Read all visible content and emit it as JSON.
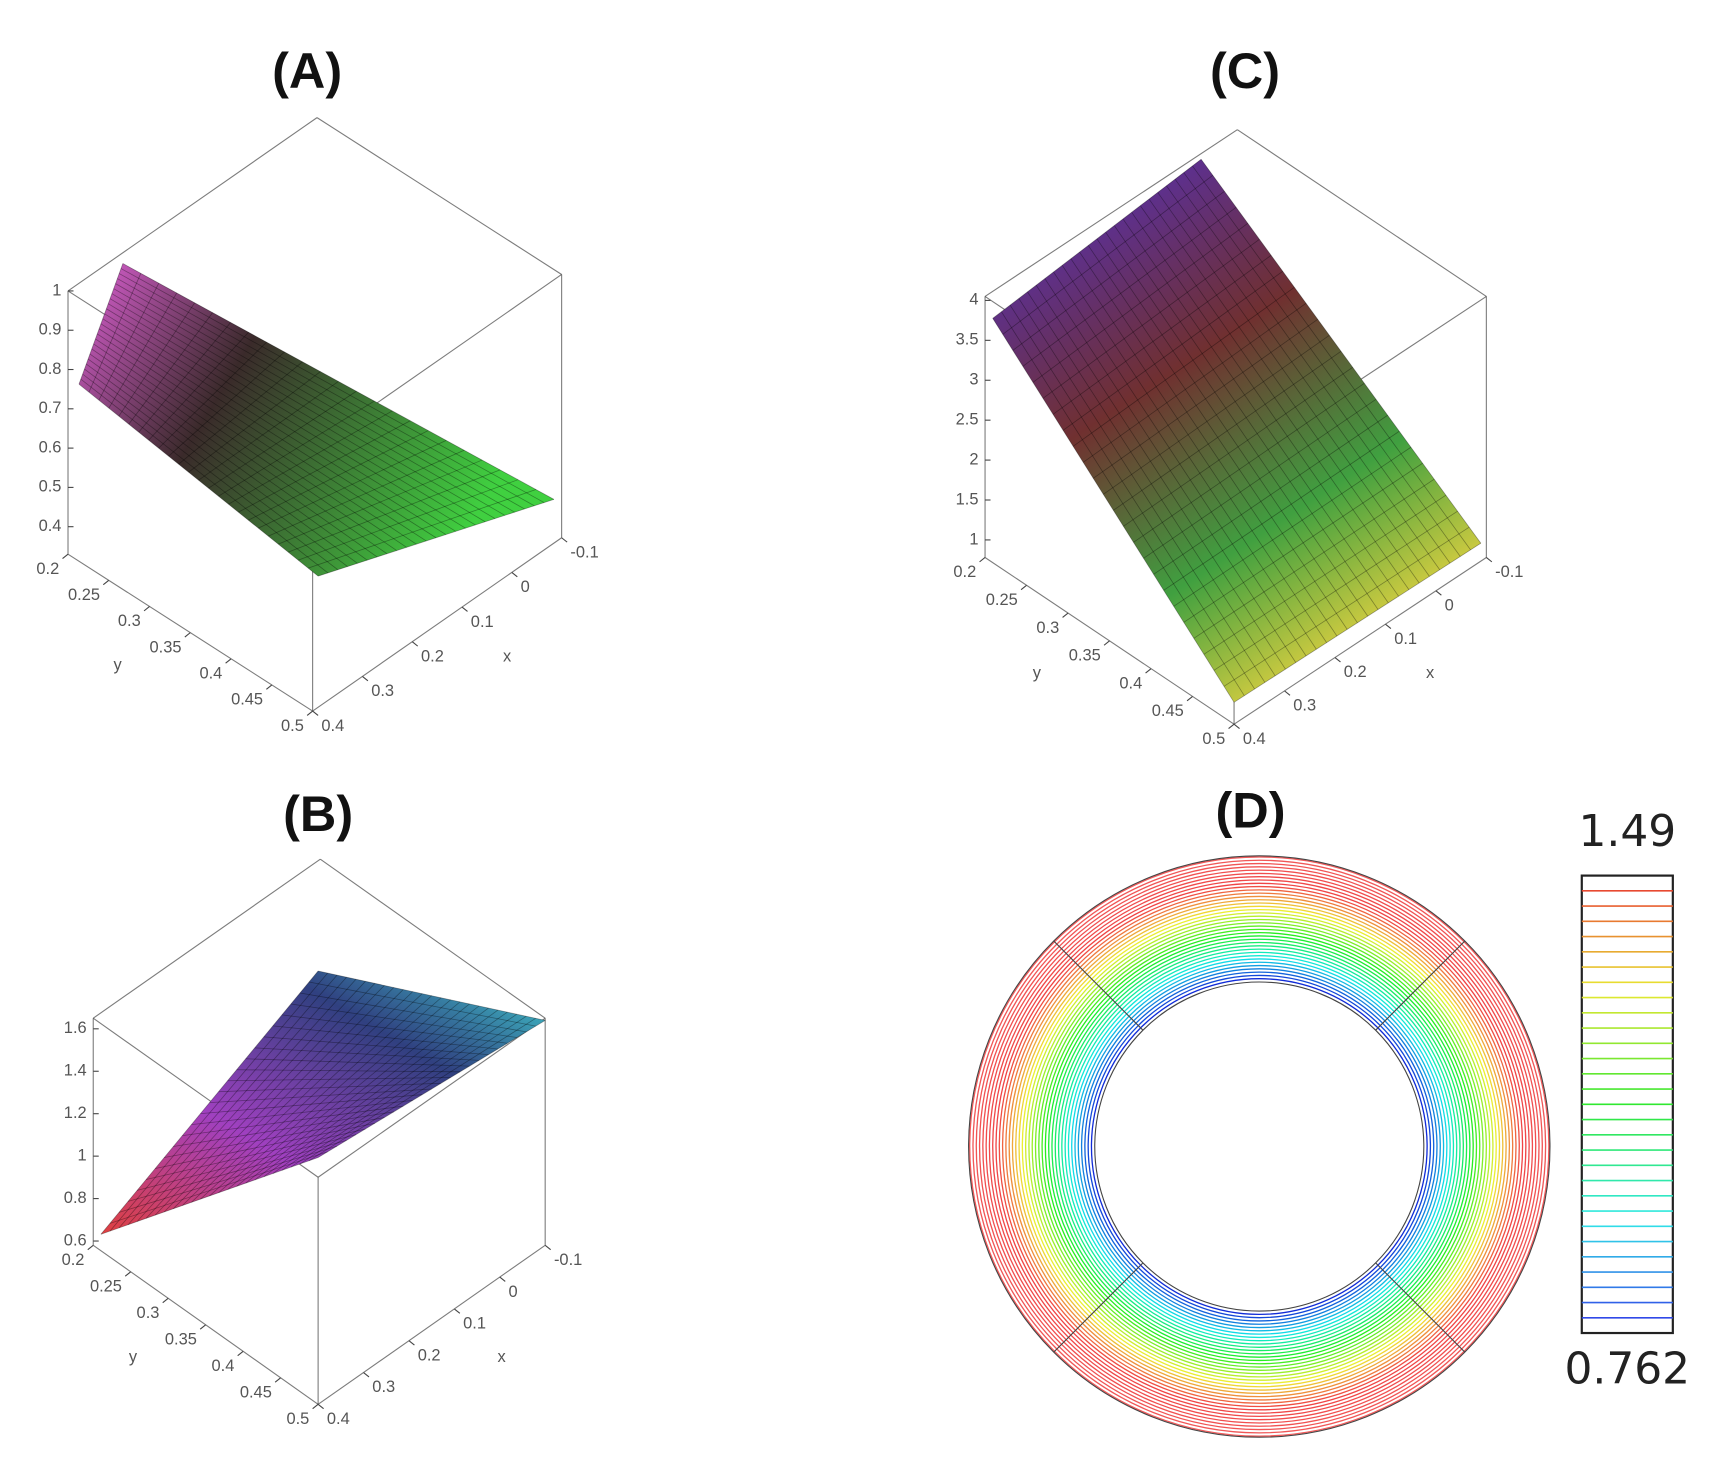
{
  "chart_data": [
    {
      "type": "surface",
      "title": "(A)",
      "xlabel": "x",
      "ylabel": "y",
      "xlim": [
        -0.1,
        0.4
      ],
      "xticks": [
        -0.1,
        0,
        0.1,
        0.2,
        0.3,
        0.4
      ],
      "ylim": [
        0.2,
        0.5
      ],
      "yticks": [
        0.2,
        0.25,
        0.3,
        0.35,
        0.4,
        0.45,
        0.5
      ],
      "zlim": [
        0.33,
        1
      ],
      "zticks": [
        0.4,
        0.5,
        0.6,
        0.7,
        0.8,
        0.9,
        1
      ]
    },
    {
      "type": "surface",
      "title": "(B)",
      "xlabel": "x",
      "ylabel": "y",
      "xlim": [
        -0.1,
        0.4
      ],
      "xticks": [
        -0.1,
        0,
        0.1,
        0.2,
        0.3,
        0.4
      ],
      "ylim": [
        0.2,
        0.5
      ],
      "yticks": [
        0.2,
        0.25,
        0.3,
        0.35,
        0.4,
        0.45,
        0.5
      ],
      "zlim": [
        0.58,
        1.65
      ],
      "zticks": [
        0.6,
        0.8,
        1,
        1.2,
        1.4,
        1.6
      ]
    },
    {
      "type": "surface",
      "title": "(C)",
      "xlabel": "x",
      "ylabel": "y",
      "xlim": [
        -0.1,
        0.4
      ],
      "xticks": [
        -0.1,
        0,
        0.1,
        0.2,
        0.3,
        0.4
      ],
      "ylim": [
        0.2,
        0.5
      ],
      "yticks": [
        0.2,
        0.25,
        0.3,
        0.35,
        0.4,
        0.45,
        0.5
      ],
      "zlim": [
        0.78,
        4.05
      ],
      "zticks": [
        1,
        1.5,
        2,
        2.5,
        3,
        3.5,
        4
      ]
    },
    {
      "type": "contour",
      "title": "(D)",
      "clim": [
        0.762,
        1.49
      ]
    }
  ]
}
